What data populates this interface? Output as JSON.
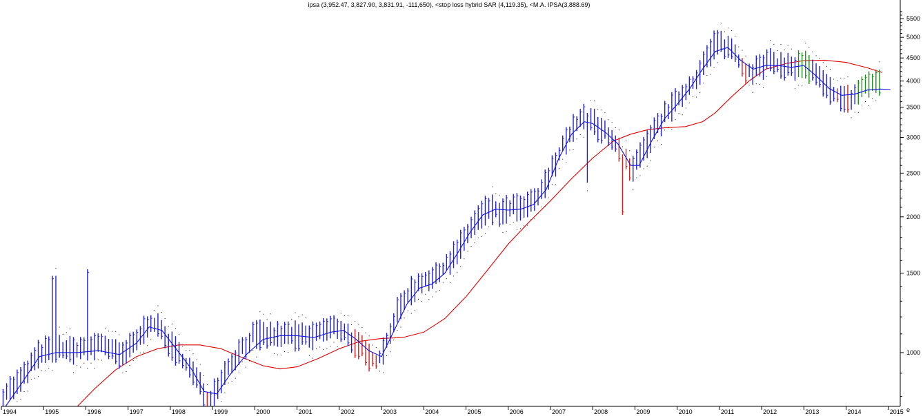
{
  "title": "ipsa (3,952.47, 3,827.90, 3,831.91, -111,650), <stop loss hybrid SAR (4,119.35), <M.A. IPSA(3,888.69)",
  "corner_label": "e",
  "colors": {
    "up_bar": "#1f1fd0",
    "down_bar": "#d01f1f",
    "recent_bar": "#1a8f1a",
    "ma_short": "#1010e0",
    "ma_long": "#e00000",
    "sar_dots": "#000000",
    "axis": "#000000"
  },
  "chart_data": {
    "type": "line",
    "scale": "log",
    "title": "ipsa (3,952.47, 3,827.90, 3,831.91, -111,650), <stop loss hybrid SAR (4,119.35), <M.A. IPSA(3,888.69)",
    "xlabel": "",
    "ylabel": "",
    "x_range": [
      1994.0,
      2015.2
    ],
    "ylim": [
      760,
      5800
    ],
    "x_ticks": [
      "1994",
      "1995",
      "1996",
      "1997",
      "1998",
      "1999",
      "2000",
      "2001",
      "2002",
      "2003",
      "2004",
      "2005",
      "2006",
      "2007",
      "2008",
      "2009",
      "2010",
      "2011",
      "2012",
      "2013",
      "2014",
      "2015"
    ],
    "y_ticks": [
      1000,
      1500,
      2000,
      2500,
      3000,
      3500,
      4000,
      4500,
      5000,
      5500
    ],
    "anchors": [
      [
        1994.0,
        800
      ],
      [
        1994.5,
        880
      ],
      [
        1994.9,
        1000
      ],
      [
        1995.2,
        1030
      ],
      [
        1995.6,
        1010
      ],
      [
        1996.0,
        1030
      ],
      [
        1996.4,
        1050
      ],
      [
        1996.8,
        980
      ],
      [
        1997.2,
        1060
      ],
      [
        1997.5,
        1180
      ],
      [
        1997.8,
        1110
      ],
      [
        1998.2,
        990
      ],
      [
        1998.6,
        880
      ],
      [
        1998.9,
        780
      ],
      [
        1999.2,
        880
      ],
      [
        1999.6,
        1000
      ],
      [
        2000.0,
        1100
      ],
      [
        2000.4,
        1090
      ],
      [
        2000.8,
        1100
      ],
      [
        2001.2,
        1080
      ],
      [
        2001.6,
        1120
      ],
      [
        2002.0,
        1140
      ],
      [
        2002.3,
        1070
      ],
      [
        2002.6,
        1000
      ],
      [
        2002.9,
        950
      ],
      [
        2003.1,
        1050
      ],
      [
        2003.4,
        1250
      ],
      [
        2003.7,
        1380
      ],
      [
        2004.0,
        1450
      ],
      [
        2004.3,
        1470
      ],
      [
        2004.6,
        1600
      ],
      [
        2004.9,
        1750
      ],
      [
        2005.2,
        1950
      ],
      [
        2005.5,
        2100
      ],
      [
        2005.8,
        2050
      ],
      [
        2006.1,
        2100
      ],
      [
        2006.4,
        2100
      ],
      [
        2006.7,
        2200
      ],
      [
        2007.0,
        2500
      ],
      [
        2007.3,
        2900
      ],
      [
        2007.6,
        3200
      ],
      [
        2007.9,
        3400
      ],
      [
        2008.1,
        3150
      ],
      [
        2008.4,
        3050
      ],
      [
        2008.7,
        2750
      ],
      [
        2008.9,
        2500
      ],
      [
        2009.2,
        2800
      ],
      [
        2009.5,
        3150
      ],
      [
        2009.8,
        3450
      ],
      [
        2010.1,
        3700
      ],
      [
        2010.4,
        4000
      ],
      [
        2010.7,
        4500
      ],
      [
        2010.9,
        4900
      ],
      [
        2011.1,
        4800
      ],
      [
        2011.3,
        4700
      ],
      [
        2011.6,
        4200
      ],
      [
        2011.9,
        4250
      ],
      [
        2012.1,
        4400
      ],
      [
        2012.4,
        4350
      ],
      [
        2012.7,
        4300
      ],
      [
        2013.0,
        4400
      ],
      [
        2013.2,
        4200
      ],
      [
        2013.5,
        3900
      ],
      [
        2013.8,
        3700
      ],
      [
        2014.1,
        3650
      ],
      [
        2014.4,
        3900
      ],
      [
        2014.7,
        4000
      ],
      [
        2014.85,
        3900
      ]
    ],
    "long_ma": [
      [
        1995.8,
        760
      ],
      [
        1996.2,
        830
      ],
      [
        1996.7,
        915
      ],
      [
        1997.2,
        980
      ],
      [
        1997.7,
        1020
      ],
      [
        1998.2,
        1040
      ],
      [
        1998.7,
        1040
      ],
      [
        1999.2,
        1020
      ],
      [
        1999.7,
        975
      ],
      [
        2000.2,
        935
      ],
      [
        2000.6,
        920
      ],
      [
        2001.0,
        930
      ],
      [
        2001.5,
        970
      ],
      [
        2002.0,
        1020
      ],
      [
        2002.5,
        1060
      ],
      [
        2003.0,
        1075
      ],
      [
        2003.5,
        1080
      ],
      [
        2004.0,
        1110
      ],
      [
        2004.5,
        1190
      ],
      [
        2005.0,
        1330
      ],
      [
        2005.5,
        1520
      ],
      [
        2006.0,
        1740
      ],
      [
        2006.5,
        1950
      ],
      [
        2007.0,
        2170
      ],
      [
        2007.5,
        2430
      ],
      [
        2008.0,
        2700
      ],
      [
        2008.5,
        2950
      ],
      [
        2008.9,
        3050
      ],
      [
        2009.3,
        3120
      ],
      [
        2009.7,
        3150
      ],
      [
        2010.2,
        3170
      ],
      [
        2010.6,
        3250
      ],
      [
        2010.9,
        3400
      ],
      [
        2011.3,
        3700
      ],
      [
        2011.7,
        4000
      ],
      [
        2012.1,
        4250
      ],
      [
        2012.6,
        4380
      ],
      [
        2013.0,
        4440
      ],
      [
        2013.5,
        4450
      ],
      [
        2014.0,
        4400
      ],
      [
        2014.5,
        4280
      ],
      [
        2014.85,
        4180
      ]
    ],
    "short_ma": [
      [
        1994.1,
        760
      ],
      [
        1994.5,
        860
      ],
      [
        1994.9,
        980
      ],
      [
        1995.3,
        1000
      ],
      [
        1995.8,
        1000
      ],
      [
        1996.3,
        1010
      ],
      [
        1996.8,
        990
      ],
      [
        1997.2,
        1050
      ],
      [
        1997.5,
        1140
      ],
      [
        1997.8,
        1120
      ],
      [
        1998.1,
        1030
      ],
      [
        1998.5,
        920
      ],
      [
        1998.8,
        820
      ],
      [
        1999.1,
        810
      ],
      [
        1999.4,
        890
      ],
      [
        1999.8,
        990
      ],
      [
        2000.2,
        1070
      ],
      [
        2000.6,
        1090
      ],
      [
        2001.0,
        1090
      ],
      [
        2001.4,
        1080
      ],
      [
        2001.8,
        1110
      ],
      [
        2002.1,
        1120
      ],
      [
        2002.4,
        1070
      ],
      [
        2002.7,
        1010
      ],
      [
        2003.0,
        980
      ],
      [
        2003.3,
        1120
      ],
      [
        2003.6,
        1280
      ],
      [
        2003.9,
        1390
      ],
      [
        2004.2,
        1420
      ],
      [
        2004.5,
        1500
      ],
      [
        2004.8,
        1660
      ],
      [
        2005.1,
        1850
      ],
      [
        2005.4,
        2020
      ],
      [
        2005.7,
        2080
      ],
      [
        2006.0,
        2070
      ],
      [
        2006.3,
        2080
      ],
      [
        2006.6,
        2130
      ],
      [
        2006.9,
        2300
      ],
      [
        2007.2,
        2700
      ],
      [
        2007.5,
        3050
      ],
      [
        2007.8,
        3250
      ],
      [
        2008.0,
        3220
      ],
      [
        2008.3,
        3080
      ],
      [
        2008.6,
        2900
      ],
      [
        2008.9,
        2600
      ],
      [
        2009.1,
        2600
      ],
      [
        2009.4,
        2950
      ],
      [
        2009.7,
        3300
      ],
      [
        2010.0,
        3550
      ],
      [
        2010.3,
        3850
      ],
      [
        2010.6,
        4250
      ],
      [
        2010.9,
        4650
      ],
      [
        2011.2,
        4750
      ],
      [
        2011.5,
        4450
      ],
      [
        2011.8,
        4250
      ],
      [
        2012.1,
        4330
      ],
      [
        2012.4,
        4330
      ],
      [
        2012.7,
        4290
      ],
      [
        2013.0,
        4330
      ],
      [
        2013.3,
        4100
      ],
      [
        2013.6,
        3850
      ],
      [
        2013.9,
        3720
      ],
      [
        2014.2,
        3740
      ],
      [
        2014.5,
        3820
      ],
      [
        2014.8,
        3840
      ],
      [
        2015.05,
        3830
      ]
    ]
  }
}
